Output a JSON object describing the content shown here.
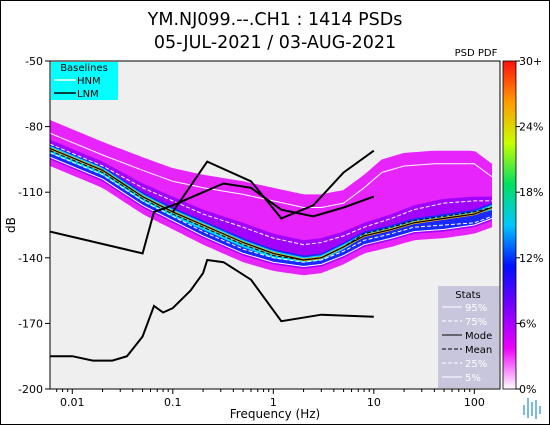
{
  "chart_data": {
    "type": "heatmap",
    "title_line1": "YM.NJ099.--.CH1 : 1414 PSDs",
    "title_line2": "05-JUL-2021 / 03-AUG-2021",
    "xlabel": "Frequency (Hz)",
    "ylabel": "dB",
    "x_scale": "log",
    "xlim": [
      0.006,
      180
    ],
    "ylim": [
      -200,
      -50
    ],
    "x_ticks": [
      {
        "value": 0.01,
        "label": "0.01"
      },
      {
        "value": 0.1,
        "label": "0.1"
      },
      {
        "value": 1,
        "label": "1"
      },
      {
        "value": 10,
        "label": "10"
      },
      {
        "value": 100,
        "label": "100"
      }
    ],
    "y_ticks": [
      {
        "value": -50,
        "label": "-50"
      },
      {
        "value": -80,
        "label": "-80"
      },
      {
        "value": -110,
        "label": "-110"
      },
      {
        "value": -140,
        "label": "-140"
      },
      {
        "value": -170,
        "label": "-170"
      },
      {
        "value": -200,
        "label": "-200"
      }
    ],
    "colorbar": {
      "title": "PSD PDF",
      "stops": [
        "#ffffff",
        "#ee00ff",
        "#7a00ff",
        "#0010ff",
        "#00c8ff",
        "#00e060",
        "#c8ff00",
        "#ff9a00",
        "#ff1010"
      ],
      "ticks": [
        {
          "value": 0,
          "label": "0%"
        },
        {
          "value": 6,
          "label": "6%"
        },
        {
          "value": 12,
          "label": "12%"
        },
        {
          "value": 18,
          "label": "18%"
        },
        {
          "value": 24,
          "label": "24%"
        },
        {
          "value": 30,
          "label": "30+"
        }
      ]
    },
    "baselines_legend": {
      "title": "Baselines",
      "items": [
        "HNM",
        "LNM"
      ],
      "bg_color": "#00ffff"
    },
    "stats_legend": {
      "title": "Stats",
      "items": [
        "95%",
        "75%",
        "Mode",
        "Mean",
        "25%",
        "5%"
      ]
    },
    "hnm": [
      [
        0.1,
        -119
      ],
      [
        0.22,
        -96
      ],
      [
        0.6,
        -105
      ],
      [
        1.2,
        -122
      ],
      [
        2.5,
        -116
      ],
      [
        5,
        -101
      ],
      [
        10,
        -91
      ]
    ],
    "lnm": [
      [
        0.006,
        -128
      ],
      [
        0.05,
        -138
      ],
      [
        0.065,
        -119
      ],
      [
        0.1,
        -116
      ],
      [
        0.2,
        -110
      ],
      [
        0.32,
        -106
      ],
      [
        0.6,
        -108
      ],
      [
        1.2,
        -118
      ],
      [
        2.5,
        -121
      ],
      [
        5,
        -117
      ],
      [
        10,
        -112
      ]
    ],
    "nlnm_lower": [
      [
        0.006,
        -185
      ],
      [
        0.01,
        -185
      ],
      [
        0.016,
        -187
      ],
      [
        0.025,
        -187
      ],
      [
        0.035,
        -185
      ],
      [
        0.05,
        -176
      ],
      [
        0.065,
        -162
      ],
      [
        0.08,
        -165
      ],
      [
        0.1,
        -163
      ],
      [
        0.15,
        -155
      ],
      [
        0.2,
        -147
      ],
      [
        0.22,
        -141
      ],
      [
        0.32,
        -142
      ],
      [
        0.6,
        -150
      ],
      [
        1.2,
        -169
      ],
      [
        3,
        -166
      ],
      [
        10,
        -167
      ]
    ],
    "mode": [
      [
        0.006,
        -90
      ],
      [
        0.02,
        -100
      ],
      [
        0.05,
        -112
      ],
      [
        0.1,
        -119
      ],
      [
        0.2,
        -125
      ],
      [
        0.5,
        -133
      ],
      [
        1,
        -138
      ],
      [
        2,
        -141
      ],
      [
        3,
        -140
      ],
      [
        5,
        -135
      ],
      [
        8,
        -130
      ],
      [
        15,
        -127
      ],
      [
        25,
        -124
      ],
      [
        50,
        -122
      ],
      [
        100,
        -120
      ],
      [
        150,
        -117
      ]
    ],
    "mean": [
      [
        0.006,
        -91
      ],
      [
        0.02,
        -101
      ],
      [
        0.05,
        -113
      ],
      [
        0.1,
        -120
      ],
      [
        0.2,
        -126
      ],
      [
        0.5,
        -134
      ],
      [
        1,
        -139
      ],
      [
        2,
        -141
      ],
      [
        3,
        -140
      ],
      [
        5,
        -135
      ],
      [
        8,
        -129
      ],
      [
        15,
        -126
      ],
      [
        25,
        -123
      ],
      [
        50,
        -121
      ],
      [
        100,
        -119
      ],
      [
        150,
        -117
      ]
    ],
    "p95": [
      [
        0.006,
        -83
      ],
      [
        0.02,
        -93
      ],
      [
        0.05,
        -100
      ],
      [
        0.1,
        -105
      ],
      [
        0.2,
        -108
      ],
      [
        0.5,
        -111
      ],
      [
        1,
        -114
      ],
      [
        2,
        -117
      ],
      [
        3,
        -117
      ],
      [
        5,
        -115
      ],
      [
        8,
        -108
      ],
      [
        12,
        -101
      ],
      [
        20,
        -98
      ],
      [
        40,
        -97
      ],
      [
        100,
        -97
      ],
      [
        150,
        -103
      ]
    ],
    "p75": [
      [
        0.006,
        -88
      ],
      [
        0.02,
        -98
      ],
      [
        0.05,
        -108
      ],
      [
        0.1,
        -114
      ],
      [
        0.2,
        -120
      ],
      [
        0.5,
        -126
      ],
      [
        1,
        -131
      ],
      [
        2,
        -134
      ],
      [
        3,
        -133
      ],
      [
        5,
        -130
      ],
      [
        8,
        -126
      ],
      [
        15,
        -122
      ],
      [
        25,
        -118
      ],
      [
        50,
        -115
      ],
      [
        100,
        -114
      ],
      [
        150,
        -114
      ]
    ],
    "p25": [
      [
        0.006,
        -92
      ],
      [
        0.02,
        -102
      ],
      [
        0.05,
        -114
      ],
      [
        0.1,
        -121
      ],
      [
        0.2,
        -128
      ],
      [
        0.5,
        -136
      ],
      [
        1,
        -140
      ],
      [
        2,
        -142
      ],
      [
        3,
        -141
      ],
      [
        5,
        -137
      ],
      [
        8,
        -132
      ],
      [
        15,
        -129
      ],
      [
        25,
        -126
      ],
      [
        50,
        -125
      ],
      [
        100,
        -124
      ],
      [
        150,
        -121
      ]
    ],
    "p5": [
      [
        0.006,
        -94
      ],
      [
        0.02,
        -104
      ],
      [
        0.05,
        -116
      ],
      [
        0.1,
        -123
      ],
      [
        0.2,
        -130
      ],
      [
        0.5,
        -138
      ],
      [
        1,
        -142
      ],
      [
        2,
        -144
      ],
      [
        3,
        -143
      ],
      [
        5,
        -139
      ],
      [
        8,
        -134
      ],
      [
        15,
        -131
      ],
      [
        25,
        -128
      ],
      [
        50,
        -127
      ],
      [
        100,
        -125
      ],
      [
        150,
        -122
      ]
    ]
  }
}
